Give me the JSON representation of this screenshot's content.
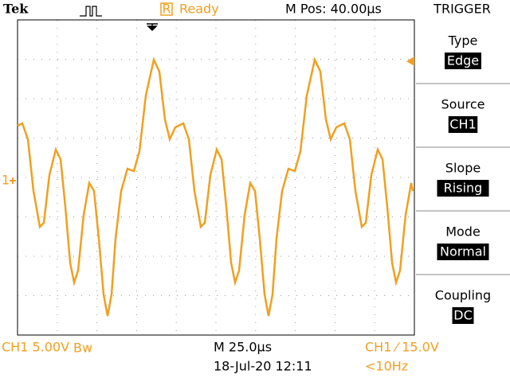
{
  "header": {
    "brand": "Tek",
    "status": "Ready",
    "status_icon": "R",
    "position": "M Pos: 40.00µs",
    "menu_title": "TRIGGER"
  },
  "channel_marker": "1",
  "menu": [
    {
      "label": "Type",
      "value": "Edge"
    },
    {
      "label": "Source",
      "value": "CH1"
    },
    {
      "label": "Slope",
      "value": "Rising"
    },
    {
      "label": "Mode",
      "value": "Normal"
    },
    {
      "label": "Coupling",
      "value": "DC"
    }
  ],
  "footer": {
    "channel_scale": "CH1  5.00V",
    "bandwidth": "Bw",
    "timebase": "M 25.0µs",
    "trigger": "CH1 ⁄ 15.0V",
    "datetime": "18-Jul-20 12:11",
    "frequency": "<10Hz"
  }
}
